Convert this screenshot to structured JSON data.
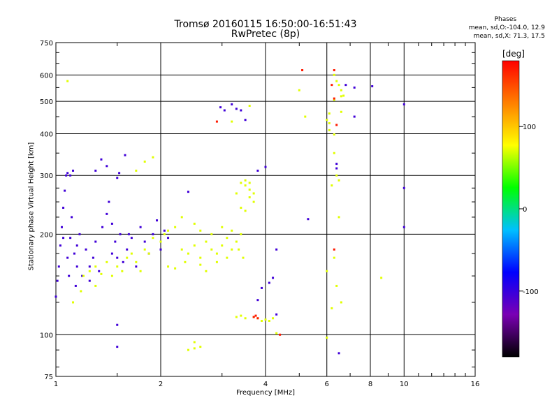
{
  "chart_data": {
    "type": "scatter",
    "title": "Tromsø 20160115 16:50:00-16:51:43",
    "subtitle": "RwPretec (8p)",
    "xlabel": "Frequency [MHz]",
    "ylabel": "Stationary phase Virtual Height [km]",
    "x_scale": "log2",
    "y_scale": "log",
    "xlim": [
      1,
      16
    ],
    "ylim": [
      75,
      750
    ],
    "x_ticks": [
      1,
      2,
      4,
      6,
      8,
      10,
      16
    ],
    "x_tick_labels": [
      "1",
      "2",
      "4",
      "6",
      "8",
      "10",
      "16"
    ],
    "y_ticks": [
      75,
      100,
      200,
      300,
      400,
      500,
      600,
      750
    ],
    "y_tick_labels": [
      "75",
      "100",
      "200",
      "300",
      "400",
      "500",
      "600",
      "750"
    ],
    "grid": true,
    "stats": {
      "header": "Phases",
      "line1": "mean, sd,O:-104.0, 12.9",
      "line2": "mean, sd,X: 71.3, 17.5"
    },
    "colorbar": {
      "title": "[deg]",
      "range": [
        -180,
        180
      ],
      "ticks": [
        100,
        0,
        -100
      ],
      "tick_labels": [
        "100",
        "0",
        "-100"
      ],
      "colormap": [
        "#000000",
        "#7a00b4",
        "#0000ff",
        "#00c0ff",
        "#00ff00",
        "#ffff00",
        "#ff8000",
        "#ff0000"
      ]
    },
    "series": [
      {
        "points": [
          [
            1.0,
            130,
            -104
          ],
          [
            1.01,
            145,
            -104
          ],
          [
            1.02,
            160,
            -104
          ],
          [
            1.03,
            185,
            -104
          ],
          [
            1.04,
            210,
            -104
          ],
          [
            1.05,
            240,
            -104
          ],
          [
            1.06,
            270,
            -104
          ],
          [
            1.07,
            300,
            -104
          ],
          [
            1.08,
            170,
            -104
          ],
          [
            1.09,
            150,
            -104
          ],
          [
            1.1,
            195,
            -104
          ],
          [
            1.11,
            225,
            -104
          ],
          [
            1.12,
            310,
            -104
          ],
          [
            1.13,
            175,
            -104
          ],
          [
            1.14,
            140,
            -104
          ],
          [
            1.15,
            160,
            -104
          ],
          [
            1.17,
            200,
            -104
          ],
          [
            1.19,
            150,
            -104
          ],
          [
            1.22,
            180,
            -104
          ],
          [
            1.25,
            145,
            -104
          ],
          [
            1.28,
            170,
            -104
          ],
          [
            1.3,
            190,
            -104
          ],
          [
            1.33,
            155,
            -104
          ],
          [
            1.36,
            210,
            -104
          ],
          [
            1.4,
            230,
            -104
          ],
          [
            1.42,
            250,
            -104
          ],
          [
            1.45,
            215,
            -104
          ],
          [
            1.48,
            190,
            -104
          ],
          [
            1.5,
            170,
            -104
          ],
          [
            1.53,
            200,
            -104
          ],
          [
            1.56,
            165,
            -104
          ],
          [
            1.6,
            180,
            -104
          ],
          [
            1.65,
            195,
            -104
          ],
          [
            1.7,
            160,
            -104
          ],
          [
            1.75,
            210,
            -104
          ],
          [
            1.8,
            190,
            -104
          ],
          [
            1.85,
            175,
            -104
          ],
          [
            1.9,
            200,
            -104
          ],
          [
            1.95,
            220,
            -104
          ],
          [
            2.0,
            180,
            -104
          ],
          [
            2.05,
            205,
            -104
          ],
          [
            2.1,
            195,
            -104
          ],
          [
            1.3,
            310,
            -104
          ],
          [
            1.35,
            335,
            -104
          ],
          [
            1.4,
            320,
            -104
          ],
          [
            1.5,
            295,
            -104
          ],
          [
            1.52,
            305,
            -104
          ],
          [
            1.58,
            345,
            -104
          ],
          [
            1.08,
            305,
            -104
          ],
          [
            1.1,
            300,
            -104
          ],
          [
            1.5,
            107,
            -104
          ],
          [
            1.5,
            92,
            -104
          ],
          [
            2.4,
            268,
            -104
          ],
          [
            2.97,
            480,
            -104
          ],
          [
            3.05,
            470,
            -104
          ],
          [
            3.2,
            490,
            -104
          ],
          [
            3.3,
            475,
            -104
          ],
          [
            3.4,
            470,
            -104
          ],
          [
            3.5,
            440,
            -104
          ],
          [
            3.8,
            310,
            -104
          ],
          [
            4.0,
            318,
            -104
          ],
          [
            3.8,
            127,
            -104
          ],
          [
            3.9,
            138,
            -104
          ],
          [
            4.1,
            143,
            -104
          ],
          [
            4.2,
            148,
            -104
          ],
          [
            4.3,
            180,
            -104
          ],
          [
            5.3,
            222,
            -104
          ],
          [
            4.3,
            115,
            -104
          ],
          [
            6.4,
            315,
            -104
          ],
          [
            6.4,
            325,
            -104
          ],
          [
            6.8,
            560,
            -104
          ],
          [
            7.2,
            550,
            -104
          ],
          [
            8.1,
            555,
            -104
          ],
          [
            10.0,
            490,
            -104
          ],
          [
            10.0,
            275,
            -104
          ],
          [
            10.0,
            210,
            -104
          ],
          [
            6.5,
            88,
            -104
          ],
          [
            7.2,
            450,
            -104
          ],
          [
            1.05,
            195,
            -104
          ],
          [
            1.15,
            185,
            -104
          ],
          [
            1.25,
            160,
            -104
          ],
          [
            1.45,
            175,
            -104
          ],
          [
            1.62,
            200,
            -104
          ]
        ]
      },
      {
        "points": [
          [
            1.2,
            150,
            71
          ],
          [
            1.25,
            155,
            71
          ],
          [
            1.3,
            160,
            71
          ],
          [
            1.35,
            152,
            71
          ],
          [
            1.4,
            165,
            71
          ],
          [
            1.5,
            160,
            71
          ],
          [
            1.55,
            155,
            71
          ],
          [
            1.6,
            170,
            71
          ],
          [
            1.65,
            175,
            71
          ],
          [
            1.7,
            165,
            71
          ],
          [
            1.8,
            180,
            71
          ],
          [
            1.85,
            175,
            71
          ],
          [
            1.9,
            195,
            71
          ],
          [
            2.0,
            190,
            71
          ],
          [
            2.05,
            200,
            71
          ],
          [
            2.1,
            205,
            71
          ],
          [
            2.2,
            210,
            71
          ],
          [
            2.3,
            180,
            71
          ],
          [
            2.4,
            175,
            71
          ],
          [
            2.5,
            185,
            71
          ],
          [
            2.6,
            170,
            71
          ],
          [
            2.7,
            190,
            71
          ],
          [
            2.8,
            180,
            71
          ],
          [
            2.9,
            175,
            71
          ],
          [
            3.0,
            185,
            71
          ],
          [
            3.1,
            195,
            71
          ],
          [
            3.2,
            180,
            71
          ],
          [
            3.3,
            190,
            71
          ],
          [
            3.4,
            200,
            71
          ],
          [
            2.3,
            225,
            71
          ],
          [
            2.5,
            215,
            71
          ],
          [
            2.6,
            205,
            71
          ],
          [
            2.8,
            200,
            71
          ],
          [
            3.0,
            210,
            71
          ],
          [
            3.2,
            205,
            71
          ],
          [
            3.5,
            280,
            71
          ],
          [
            3.5,
            290,
            71
          ],
          [
            3.6,
            285,
            71
          ],
          [
            3.6,
            272,
            71
          ],
          [
            3.7,
            265,
            71
          ],
          [
            3.6,
            258,
            71
          ],
          [
            3.7,
            250,
            71
          ],
          [
            3.3,
            265,
            71
          ],
          [
            3.4,
            285,
            71
          ],
          [
            3.4,
            240,
            71
          ],
          [
            3.5,
            235,
            71
          ],
          [
            3.7,
            113,
            71
          ],
          [
            3.8,
            112,
            71
          ],
          [
            3.9,
            110,
            71
          ],
          [
            4.0,
            111,
            71
          ],
          [
            4.1,
            110,
            71
          ],
          [
            4.2,
            112,
            71
          ],
          [
            3.3,
            113,
            71
          ],
          [
            3.4,
            114,
            71
          ],
          [
            3.5,
            112,
            71
          ],
          [
            2.4,
            90,
            71
          ],
          [
            2.5,
            91,
            71
          ],
          [
            2.6,
            92,
            71
          ],
          [
            1.8,
            330,
            71
          ],
          [
            1.9,
            340,
            71
          ],
          [
            1.7,
            310,
            71
          ],
          [
            2.5,
            95,
            71
          ],
          [
            4.3,
            101,
            71
          ],
          [
            5.2,
            450,
            71
          ],
          [
            5.0,
            540,
            71
          ],
          [
            6.1,
            460,
            71
          ],
          [
            6.3,
            600,
            71
          ],
          [
            6.4,
            575,
            71
          ],
          [
            6.5,
            560,
            71
          ],
          [
            6.6,
            540,
            71
          ],
          [
            6.7,
            520,
            71
          ],
          [
            6.1,
            410,
            71
          ],
          [
            6.3,
            350,
            71
          ],
          [
            6.4,
            300,
            71
          ],
          [
            6.5,
            290,
            71
          ],
          [
            6.3,
            170,
            71
          ],
          [
            6.4,
            140,
            71
          ],
          [
            6.2,
            120,
            71
          ],
          [
            6.6,
            125,
            71
          ],
          [
            6.0,
            98,
            71
          ],
          [
            6.2,
            280,
            71
          ],
          [
            8.6,
            148,
            71
          ],
          [
            6.3,
            505,
            71
          ],
          [
            6.6,
            465,
            71
          ],
          [
            1.08,
            575,
            71
          ],
          [
            3.6,
            485,
            71
          ],
          [
            3.2,
            435,
            71
          ],
          [
            6.1,
            430,
            71
          ],
          [
            6.3,
            398,
            71
          ],
          [
            6.0,
            440,
            71
          ],
          [
            6.5,
            225,
            71
          ],
          [
            6.0,
            155,
            71
          ],
          [
            6.6,
            518,
            71
          ],
          [
            1.3,
            140,
            71
          ],
          [
            1.45,
            150,
            71
          ],
          [
            1.75,
            155,
            71
          ],
          [
            2.1,
            160,
            71
          ],
          [
            2.2,
            158,
            71
          ],
          [
            2.35,
            165,
            71
          ],
          [
            2.6,
            162,
            71
          ],
          [
            2.9,
            165,
            71
          ],
          [
            3.1,
            170,
            71
          ],
          [
            3.35,
            180,
            71
          ],
          [
            3.45,
            170,
            71
          ],
          [
            2.7,
            155,
            71
          ],
          [
            1.12,
            125,
            71
          ],
          [
            1.18,
            135,
            71
          ]
        ]
      },
      {
        "points": [
          [
            3.7,
            113,
            170
          ],
          [
            3.75,
            114,
            170
          ],
          [
            3.8,
            112,
            170
          ],
          [
            5.1,
            620,
            170
          ],
          [
            6.3,
            510,
            170
          ],
          [
            6.3,
            180,
            170
          ],
          [
            2.9,
            435,
            170
          ],
          [
            4.4,
            100,
            170
          ],
          [
            6.3,
            620,
            170
          ],
          [
            6.2,
            560,
            170
          ],
          [
            6.4,
            425,
            170
          ]
        ]
      }
    ]
  }
}
